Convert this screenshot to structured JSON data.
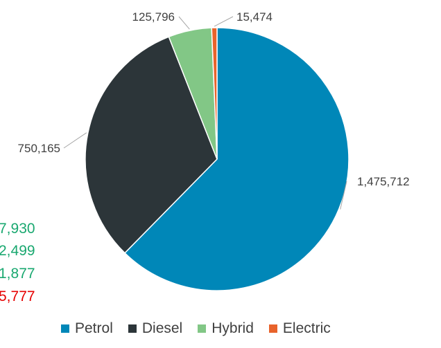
{
  "chart_data": {
    "type": "pie",
    "categories": [
      "Petrol",
      "Diesel",
      "Hybrid",
      "Electric"
    ],
    "values": [
      1475712,
      750165,
      125796,
      15474
    ],
    "data_labels": [
      "1,475,712",
      "750,165",
      "125,796",
      "15,474"
    ],
    "colors": [
      "#0087b8",
      "#2c3539",
      "#82c786",
      "#e8632b"
    ],
    "legend": {
      "position": "bottom",
      "entries": [
        "Petrol",
        "Diesel",
        "Hybrid",
        "Electric"
      ]
    },
    "start_angle_deg": 0,
    "direction": "clockwise"
  },
  "side_values": [
    {
      "text": "7,930",
      "color": "#1aa870"
    },
    {
      "text": "2,499",
      "color": "#1aa870"
    },
    {
      "text": "1,877",
      "color": "#1aa870"
    },
    {
      "text": "5,777",
      "color": "#e60000"
    }
  ]
}
